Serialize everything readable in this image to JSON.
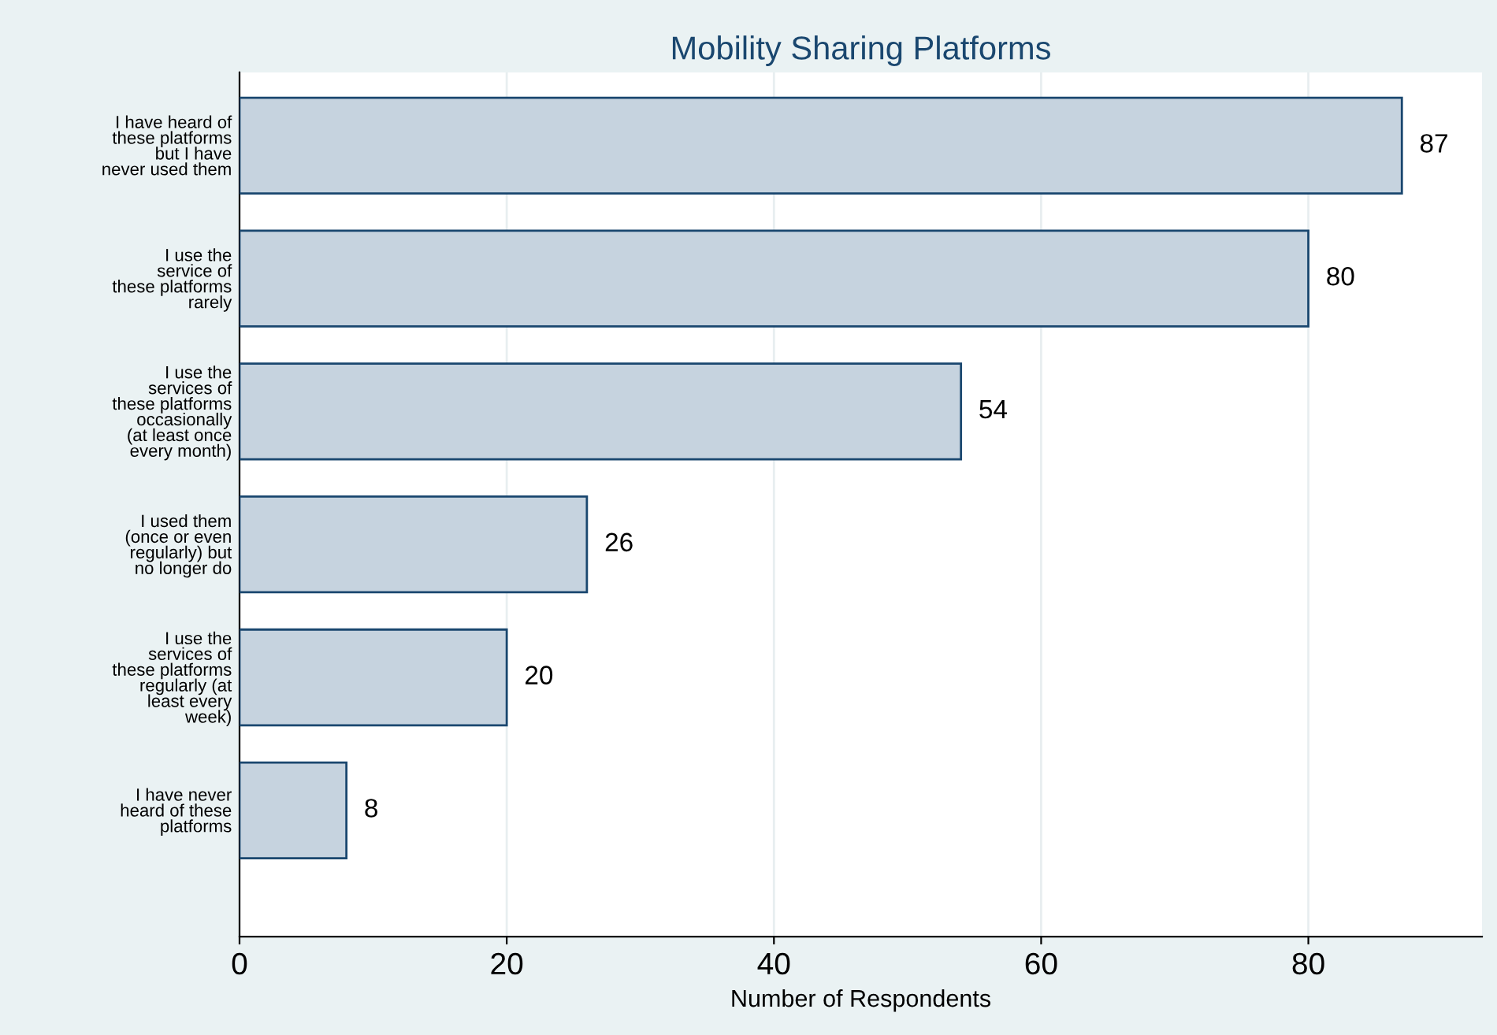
{
  "chart_data": {
    "type": "bar",
    "orientation": "horizontal",
    "title": "Mobility Sharing Platforms",
    "xlabel": "Number of Respondents",
    "categories": [
      "I have heard of\nthese platforms\nbut I have\nnever used them",
      "I use the\nservice of\nthese platforms\nrarely",
      "I use the\nservices of\nthese platforms\noccasionally\n(at least once\nevery month)",
      "I used them\n(once or even\nregularly) but\nno longer do",
      "I use the\nservices of\nthese platforms\nregularly (at\nleast every\nweek)",
      "I have never\nheard of these\nplatforms"
    ],
    "values": [
      87,
      80,
      54,
      26,
      20,
      8
    ],
    "color": "#c6d3df",
    "data_labels": true,
    "xlim": [
      0,
      93
    ],
    "xticks": [
      0,
      20,
      40,
      60,
      80
    ],
    "grid": "x",
    "legend": false
  }
}
